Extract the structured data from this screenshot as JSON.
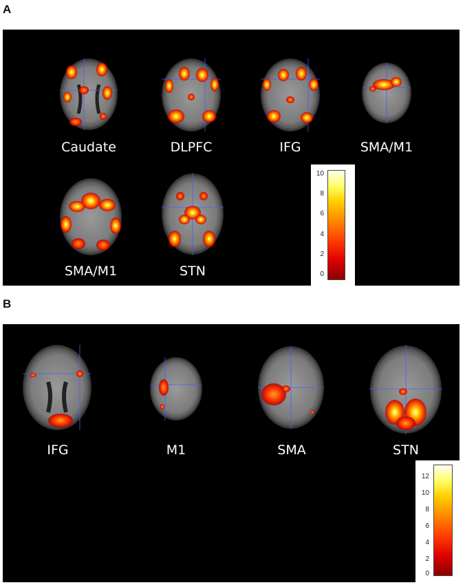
{
  "panel_a": {
    "label": "A",
    "brains": [
      "Caudate",
      "DLPFC",
      "IFG",
      "SMA/M1",
      "SMA/M1",
      "STN"
    ],
    "colorbar_ticks": [
      "10",
      "8",
      "6",
      "4",
      "2",
      "0"
    ]
  },
  "panel_b": {
    "label": "B",
    "brains": [
      "IFG",
      "M1",
      "SMA",
      "STN"
    ],
    "colorbar_ticks": [
      "12",
      "10",
      "8",
      "6",
      "4",
      "2",
      "0"
    ]
  },
  "colors": {
    "background": "#000000",
    "crosshair": "#4a5cff",
    "activation_low": "#cc0000",
    "activation_mid": "#ff8800",
    "activation_high": "#ffffaa"
  }
}
